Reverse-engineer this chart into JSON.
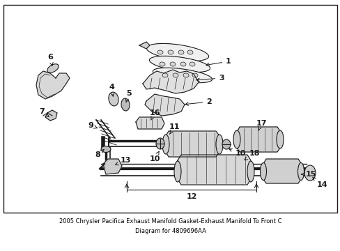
{
  "title_line1": "2005 Chrysler Pacifica Exhaust Manifold Gasket-Exhaust Manifold To Front C",
  "title_line2": "Diagram for 4809696AA",
  "bg_color": "#ffffff",
  "border_color": "#000000",
  "text_color": "#000000",
  "fig_width": 4.89,
  "fig_height": 3.6,
  "dpi": 100,
  "title_fontsize": 6.0,
  "label_fontsize": 8.0
}
